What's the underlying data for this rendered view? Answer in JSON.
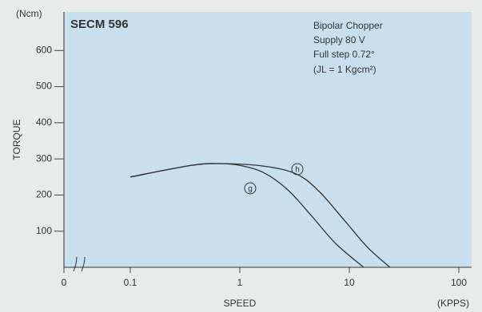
{
  "chart_data": {
    "type": "line",
    "title": "SECM 596",
    "annotations": [
      "Bipolar Chopper",
      "Supply 80 V",
      "Full step 0.72°",
      "(JL = 1 Kgcm²)"
    ],
    "x_label": "SPEED",
    "x_unit": "(KPPS)",
    "y_label": "TORQUE",
    "y_unit": "(Ncm)",
    "xscale": "log",
    "xlim": [
      0,
      100
    ],
    "xticks": [
      0,
      0.1,
      1,
      10,
      100
    ],
    "ylim": [
      0,
      700
    ],
    "yticks": [
      100,
      200,
      300,
      400,
      500,
      600
    ],
    "series": [
      {
        "name": "h",
        "color": "#333333",
        "x": [
          0.1,
          0.36,
          0.65,
          1.65,
          3.3,
          5.3,
          8.9,
          14.7,
          23.5
        ],
        "values": [
          250,
          282,
          287,
          280,
          258,
          210,
          132,
          55,
          0
        ]
      },
      {
        "name": "g",
        "color": "#333333",
        "x": [
          0.1,
          0.36,
          0.65,
          1,
          1.65,
          2.75,
          4.5,
          7.5,
          13.5
        ],
        "values": [
          250,
          282,
          287,
          282,
          262,
          214,
          143,
          66,
          0
        ]
      }
    ]
  }
}
